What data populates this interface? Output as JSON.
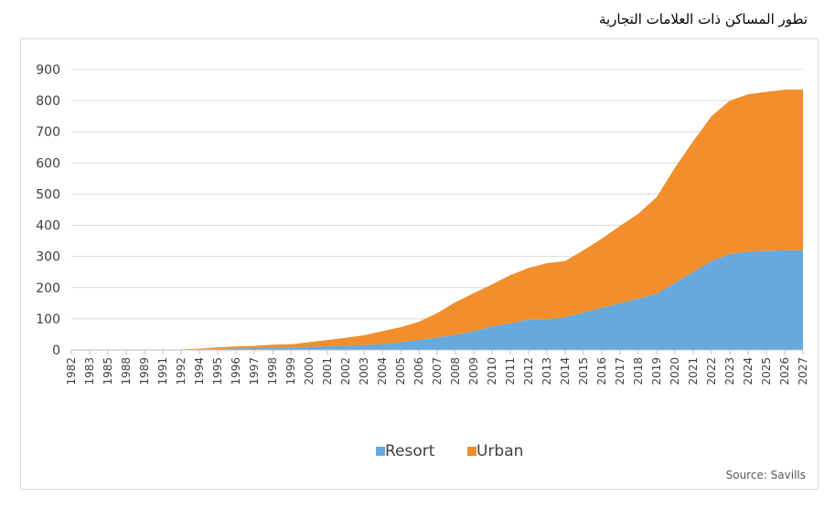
{
  "page": {
    "title": "تطور المساكن ذات العلامات التجارية"
  },
  "source": "Source: Savills",
  "colors": {
    "resort": "#65a9de",
    "urban": "#f28e2b",
    "grid": "#d9d9d9",
    "axis": "#bfbfbf"
  },
  "chart_data": {
    "type": "area",
    "stacked": true,
    "title": "تطور المساكن ذات العلامات التجارية",
    "x": [
      "1982",
      "1983",
      "1985",
      "1988",
      "1989",
      "1991",
      "1992",
      "1994",
      "1995",
      "1996",
      "1997",
      "1998",
      "1999",
      "2000",
      "2001",
      "2002",
      "2003",
      "2004",
      "2005",
      "2006",
      "2007",
      "2008",
      "2009",
      "2010",
      "2011",
      "2012",
      "2013",
      "2014",
      "2015",
      "2016",
      "2017",
      "2018",
      "2019",
      "2020",
      "2021",
      "2022",
      "2023",
      "2024",
      "2025",
      "2026",
      "2027"
    ],
    "x_tick_labels": [
      "1982",
      "1983",
      "1985",
      "1988",
      "1989",
      "1991",
      "1992",
      "1994",
      "1995",
      "1996",
      "1997",
      "1998",
      "1999",
      "2000",
      "2001",
      "2002",
      "2003",
      "2004",
      "2005",
      "2006",
      "2007",
      "2008",
      "2009",
      "2010",
      "2011",
      "2012",
      "2013",
      "2014",
      "2015",
      "2016",
      "2017",
      "2018",
      "2019",
      "2020",
      "2021",
      "2022",
      "2023",
      "2024",
      "2025",
      "2026",
      "2027"
    ],
    "ylim": [
      0,
      900
    ],
    "yticks": [
      0,
      100,
      200,
      300,
      400,
      500,
      600,
      700,
      800,
      900
    ],
    "grid": true,
    "legend_position": "bottom",
    "series": [
      {
        "name": "Resort",
        "values": [
          0,
          0,
          0,
          0,
          0,
          0,
          0,
          1,
          3,
          5,
          6,
          8,
          8,
          10,
          12,
          14,
          15,
          18,
          25,
          32,
          40,
          48,
          60,
          75,
          85,
          98,
          98,
          105,
          120,
          135,
          150,
          165,
          180,
          215,
          250,
          285,
          308,
          315,
          318,
          320,
          320
        ]
      },
      {
        "name": "Urban",
        "values": [
          0,
          0,
          0,
          0,
          0,
          0,
          2,
          3,
          5,
          6,
          7,
          9,
          10,
          15,
          20,
          25,
          32,
          42,
          48,
          58,
          78,
          105,
          122,
          135,
          155,
          165,
          180,
          180,
          200,
          222,
          248,
          272,
          310,
          370,
          420,
          465,
          492,
          505,
          510,
          515,
          515
        ]
      }
    ]
  }
}
